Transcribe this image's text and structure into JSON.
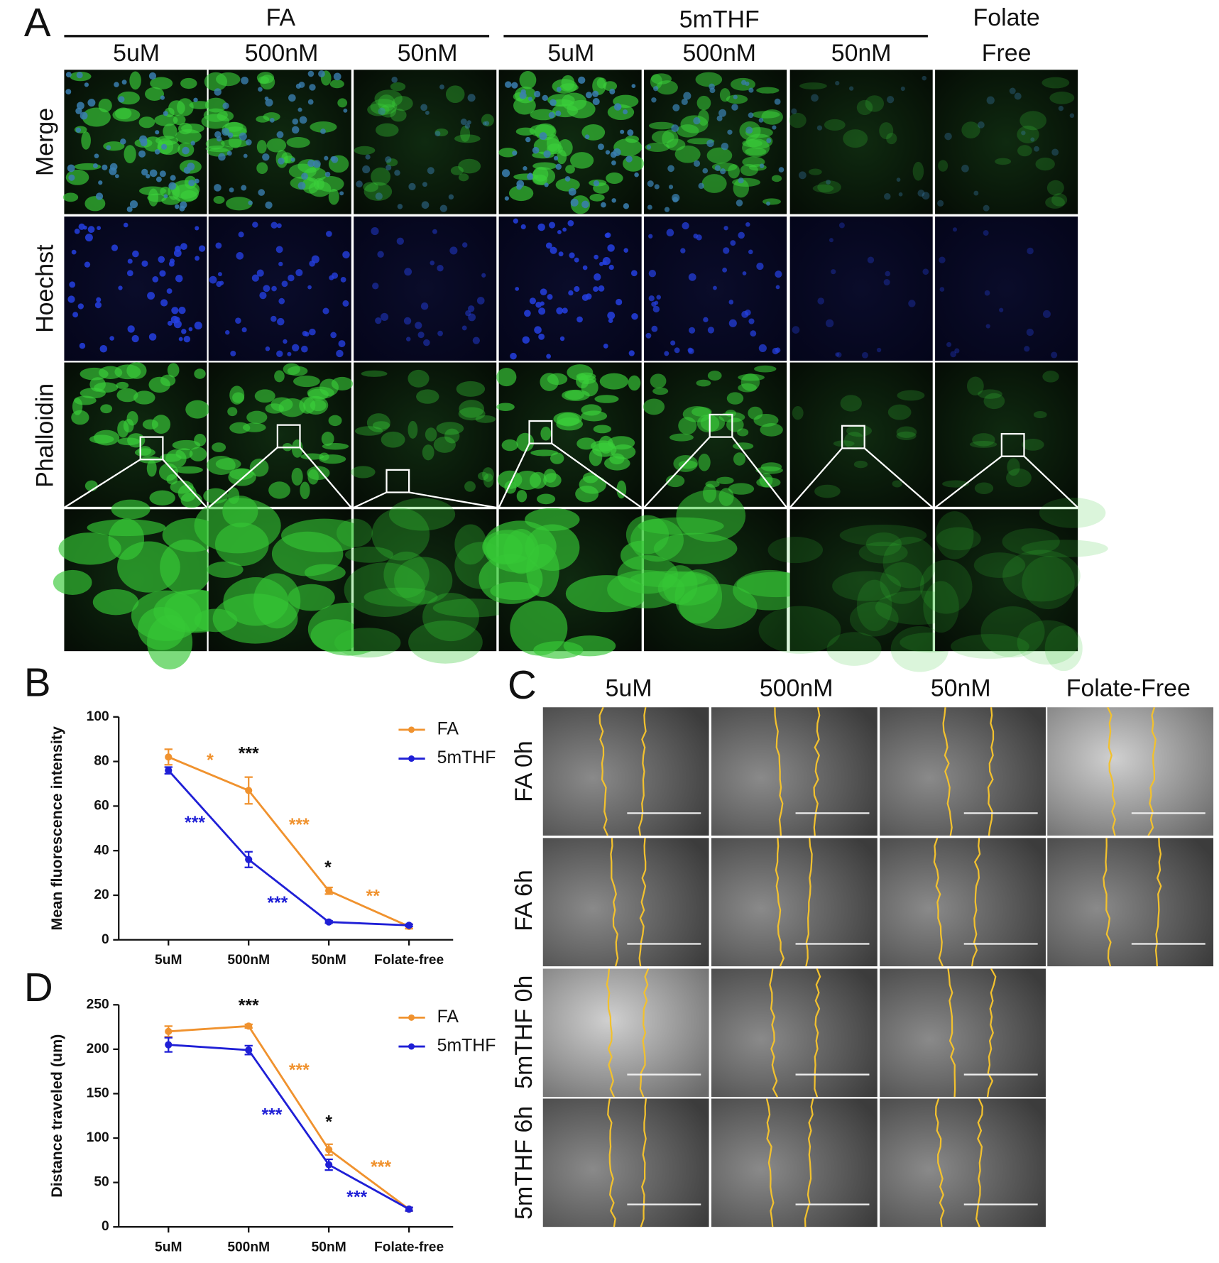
{
  "panel_letters": [
    "A",
    "B",
    "C",
    "D"
  ],
  "panel_a": {
    "groups": [
      "FA",
      "5mTHF"
    ],
    "folate_free": [
      "Folate",
      "Free"
    ],
    "columns": [
      "5uM",
      "500nM",
      "50nM",
      "5uM",
      "500nM",
      "50nM"
    ],
    "rows": [
      "Merge",
      "Hoechst",
      "Phalloidin"
    ]
  },
  "panel_c": {
    "columns": [
      "5uM",
      "500nM",
      "50nM",
      "Folate-Free"
    ],
    "rows": [
      "FA 0h",
      "FA 6h",
      "5mTHF 0h",
      "5mTHF 6h"
    ]
  },
  "chart_data": [
    {
      "type": "line",
      "y_label": "Mean fluorescence intensity",
      "categories": [
        "5uM",
        "500nM",
        "50nM",
        "Folate-free"
      ],
      "ylim": [
        0,
        100
      ],
      "yticks": [
        0,
        20,
        40,
        60,
        80,
        100
      ],
      "legend": "upper right",
      "series": [
        {
          "name": "FA",
          "color": "#f0922e",
          "values": [
            82,
            67,
            22,
            6
          ],
          "errors": [
            3.5,
            6,
            1.5,
            1
          ]
        },
        {
          "name": "5mTHF",
          "color": "#1f1fd6",
          "values": [
            76,
            36,
            8,
            6.5
          ],
          "errors": [
            1.5,
            3.5,
            0.5,
            0.5
          ]
        }
      ],
      "annotations": [
        {
          "text": "*",
          "color": "#f0922e",
          "x": 0.52,
          "y": 80
        },
        {
          "text": "***",
          "color": "#111111",
          "x": 1,
          "y": 83
        },
        {
          "text": "***",
          "color": "#1f1fd6",
          "x": 0.33,
          "y": 52
        },
        {
          "text": "***",
          "color": "#f0922e",
          "x": 1.63,
          "y": 51
        },
        {
          "text": "*",
          "color": "#111111",
          "x": 1.99,
          "y": 32
        },
        {
          "text": "***",
          "color": "#1f1fd6",
          "x": 1.36,
          "y": 16
        },
        {
          "text": "**",
          "color": "#f0922e",
          "x": 2.55,
          "y": 19
        }
      ]
    },
    {
      "type": "line",
      "y_label": "Distance traveled (um)",
      "categories": [
        "5uM",
        "500nM",
        "50nM",
        "Folate-free"
      ],
      "ylim": [
        0,
        250
      ],
      "yticks": [
        0,
        50,
        100,
        150,
        200,
        250
      ],
      "legend": "upper right",
      "series": [
        {
          "name": "FA",
          "color": "#f0922e",
          "values": [
            220,
            226,
            87,
            20
          ],
          "errors": [
            6,
            2,
            6,
            2
          ]
        },
        {
          "name": "5mTHF",
          "color": "#1f1fd6",
          "values": [
            205,
            199,
            70,
            20
          ],
          "errors": [
            8,
            5,
            6,
            2
          ]
        }
      ],
      "annotations": [
        {
          "text": "***",
          "color": "#111111",
          "x": 1,
          "y": 248
        },
        {
          "text": "***",
          "color": "#f0922e",
          "x": 1.63,
          "y": 175
        },
        {
          "text": "***",
          "color": "#1f1fd6",
          "x": 1.29,
          "y": 125
        },
        {
          "text": "*",
          "color": "#111111",
          "x": 2,
          "y": 117
        },
        {
          "text": "***",
          "color": "#f0922e",
          "x": 2.65,
          "y": 66
        },
        {
          "text": "***",
          "color": "#1f1fd6",
          "x": 2.35,
          "y": 32
        }
      ]
    }
  ]
}
